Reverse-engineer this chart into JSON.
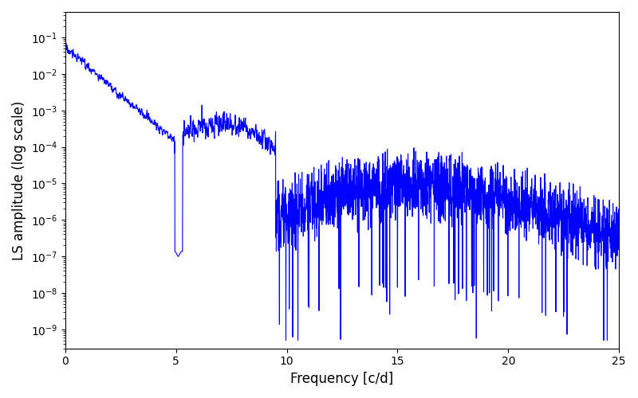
{
  "line_color": "#0000ff",
  "line_width": 0.8,
  "xlabel": "Frequency [c/d]",
  "ylabel": "LS amplitude (log scale)",
  "xlim": [
    0,
    25
  ],
  "ylim_log": [
    3e-10,
    0.5
  ],
  "xticks": [
    0,
    5,
    10,
    15,
    20,
    25
  ],
  "background_color": "#ffffff",
  "figsize": [
    8.0,
    5.0
  ],
  "dpi": 100,
  "seed": 17
}
